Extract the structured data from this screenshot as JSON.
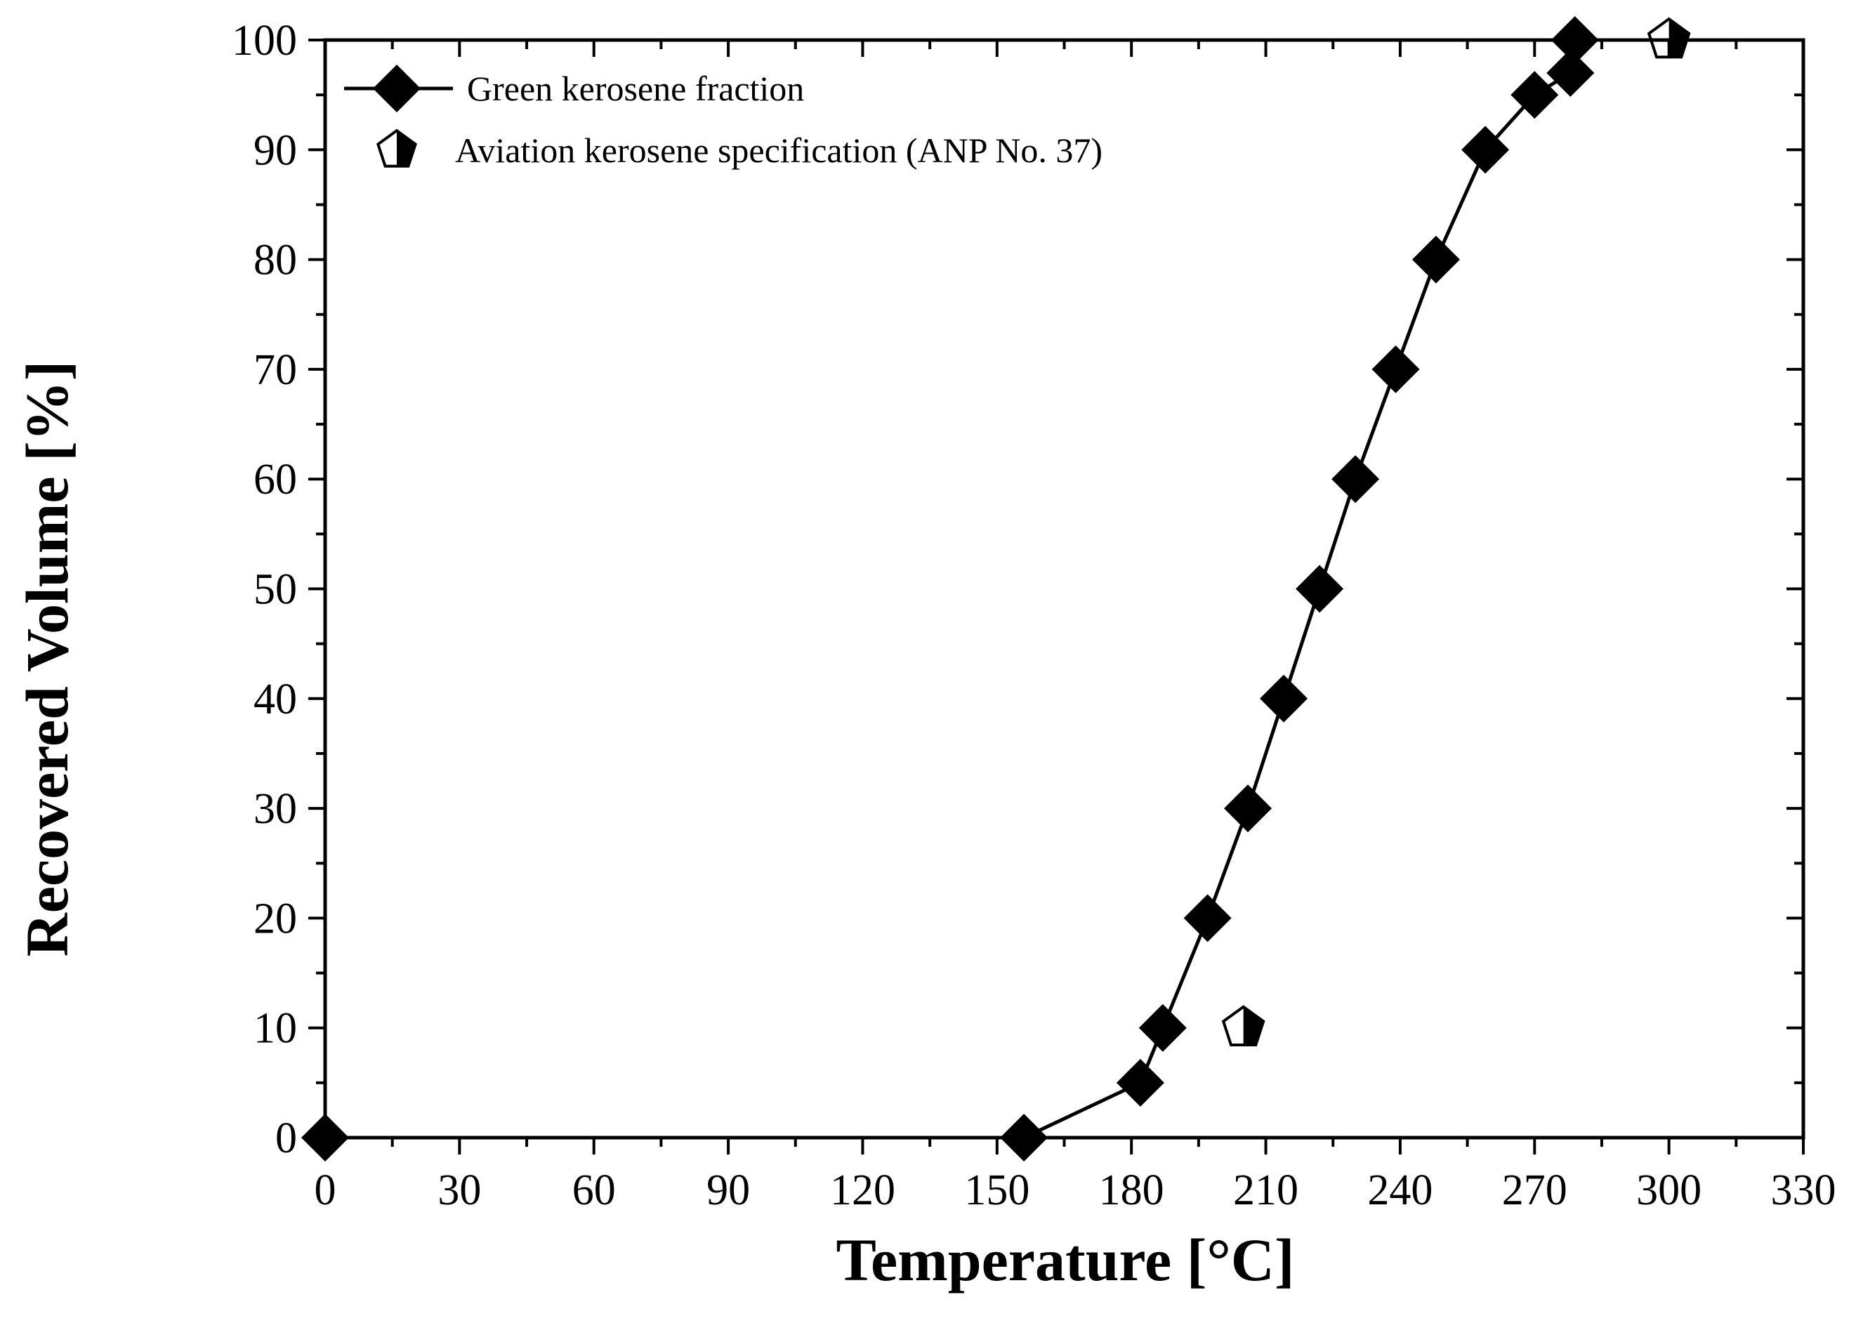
{
  "chart_data": {
    "type": "line",
    "title": "",
    "xlabel": "Temperature [°C]",
    "ylabel": "Recovered Volume [%]",
    "xlim": [
      0,
      330
    ],
    "ylim": [
      0,
      100
    ],
    "x_ticks": [
      "0",
      "30",
      "60",
      "90",
      "120",
      "150",
      "180",
      "210",
      "240",
      "270",
      "300",
      "330"
    ],
    "y_ticks": [
      "0",
      "10",
      "20",
      "30",
      "40",
      "50",
      "60",
      "70",
      "80",
      "90",
      "100"
    ],
    "grid": false,
    "legend_position": "top-left",
    "series": [
      {
        "name": "Green kerosene fraction",
        "marker": "diamond",
        "line": true,
        "color": "#000000",
        "points": [
          {
            "x": 0,
            "y": 0
          },
          {
            "x": 156,
            "y": 0
          },
          {
            "x": 182,
            "y": 5
          },
          {
            "x": 187,
            "y": 10
          },
          {
            "x": 197,
            "y": 20
          },
          {
            "x": 206,
            "y": 30
          },
          {
            "x": 214,
            "y": 40
          },
          {
            "x": 222,
            "y": 50
          },
          {
            "x": 230,
            "y": 60
          },
          {
            "x": 239,
            "y": 70
          },
          {
            "x": 248,
            "y": 80
          },
          {
            "x": 259,
            "y": 90
          },
          {
            "x": 270,
            "y": 95
          },
          {
            "x": 278,
            "y": 97
          },
          {
            "x": 279,
            "y": 100
          }
        ]
      },
      {
        "name": "Aviation kerosene specification (ANP No. 37)",
        "marker": "pentagon-half-filled",
        "line": false,
        "color": "#000000",
        "points": [
          {
            "x": 205,
            "y": 10
          },
          {
            "x": 300,
            "y": 100
          }
        ]
      }
    ]
  }
}
